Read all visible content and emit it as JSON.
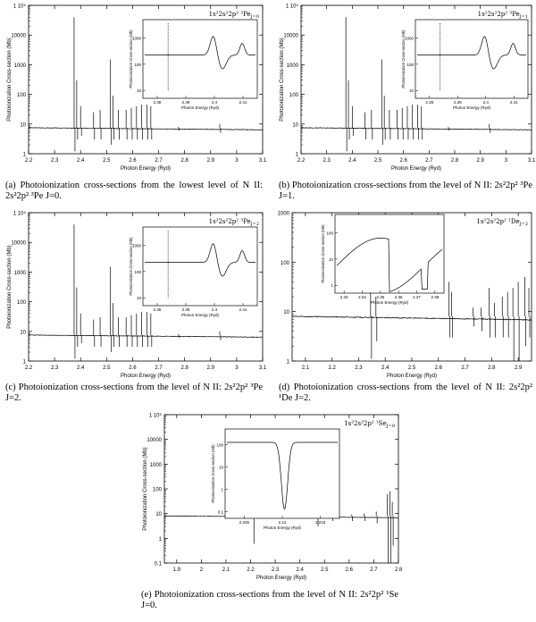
{
  "chart_data": [
    {
      "type": "line",
      "ylabel": "Photoionization Cross-section (Mb)",
      "xlabel": "Photon Energy (Ryd)",
      "state": "1s²2s²2p² ³Pe",
      "state_j": "J=0",
      "yscale": "log",
      "ylim": [
        1,
        100000
      ],
      "yticks": [
        "1",
        "10",
        "100",
        "1000",
        "10000",
        "1 10⁵"
      ],
      "xlim": [
        2.2,
        3.1
      ],
      "xticks": [
        "2.2",
        "2.3",
        "2.4",
        "2.5",
        "2.6",
        "2.7",
        "2.8",
        "2.9",
        "3",
        "3.1"
      ],
      "baseline": 7.5,
      "resonances": [
        {
          "x": 2.375,
          "peak": 40000,
          "dip": 1.2
        },
        {
          "x": 2.385,
          "peak": 300,
          "dip": 3
        },
        {
          "x": 2.4,
          "peak": 40,
          "dip": 4
        },
        {
          "x": 2.45,
          "peak": 25,
          "dip": 3
        },
        {
          "x": 2.475,
          "peak": 30,
          "dip": 3
        },
        {
          "x": 2.515,
          "peak": 1500,
          "dip": 2
        },
        {
          "x": 2.525,
          "peak": 90,
          "dip": 3
        },
        {
          "x": 2.545,
          "peak": 30,
          "dip": 3
        },
        {
          "x": 2.575,
          "peak": 30,
          "dip": 3
        },
        {
          "x": 2.595,
          "peak": 35,
          "dip": 3
        },
        {
          "x": 2.615,
          "peak": 40,
          "dip": 3
        },
        {
          "x": 2.635,
          "peak": 45,
          "dip": 3
        },
        {
          "x": 2.655,
          "peak": 45,
          "dip": 3
        },
        {
          "x": 2.67,
          "peak": 40,
          "dip": 3
        },
        {
          "x": 2.775,
          "peak": 8,
          "dip": 6
        },
        {
          "x": 2.935,
          "peak": 10,
          "dip": 5
        }
      ],
      "inset": {
        "ylabel": "Photoionization Cross-section (Mb)",
        "xlabel": "Photon Energy (Ryd)",
        "yticks": [
          "10",
          "100",
          "1000"
        ],
        "xticks": [
          "2.38",
          "2.39",
          "2.4",
          "2.41"
        ]
      },
      "caption": "(a) Photoionization cross-sections from the lowest level of N II: 2s²2p² ³Pe J=0."
    },
    {
      "type": "line",
      "ylabel": "Photoionization Cross-section (Mb)",
      "xlabel": "Photon Energy (Ryd)",
      "state": "1s²2s²2p² ³Pe",
      "state_j": "J=1",
      "yscale": "log",
      "ylim": [
        1,
        100000
      ],
      "yticks": [
        "1",
        "10",
        "100",
        "1000",
        "10000",
        "1 10⁵"
      ],
      "xlim": [
        2.2,
        3.1
      ],
      "xticks": [
        "2.2",
        "2.3",
        "2.4",
        "2.5",
        "2.6",
        "2.7",
        "2.8",
        "2.9",
        "3",
        "3.1"
      ],
      "baseline": 7.5,
      "resonances": [
        {
          "x": 2.375,
          "peak": 40000,
          "dip": 1.2
        },
        {
          "x": 2.385,
          "peak": 300,
          "dip": 3
        },
        {
          "x": 2.4,
          "peak": 40,
          "dip": 4
        },
        {
          "x": 2.45,
          "peak": 25,
          "dip": 3
        },
        {
          "x": 2.475,
          "peak": 30,
          "dip": 3
        },
        {
          "x": 2.515,
          "peak": 1500,
          "dip": 2
        },
        {
          "x": 2.525,
          "peak": 90,
          "dip": 3
        },
        {
          "x": 2.545,
          "peak": 30,
          "dip": 3
        },
        {
          "x": 2.575,
          "peak": 30,
          "dip": 3
        },
        {
          "x": 2.595,
          "peak": 35,
          "dip": 3
        },
        {
          "x": 2.615,
          "peak": 40,
          "dip": 3
        },
        {
          "x": 2.635,
          "peak": 45,
          "dip": 3
        },
        {
          "x": 2.655,
          "peak": 45,
          "dip": 3
        },
        {
          "x": 2.67,
          "peak": 40,
          "dip": 3
        },
        {
          "x": 2.775,
          "peak": 8,
          "dip": 6
        },
        {
          "x": 2.935,
          "peak": 10,
          "dip": 5
        }
      ],
      "inset": {
        "ylabel": "Photoionization Cross-section (Mb)",
        "xlabel": "Photon Energy (Ryd)",
        "yticks": [
          "10",
          "100",
          "1000"
        ],
        "xticks": [
          "2.38",
          "2.39",
          "2.4",
          "2.41"
        ]
      },
      "caption": "(b) Photoionization cross-sections from the level of N II: 2s²2p² ³Pe J=1."
    },
    {
      "type": "line",
      "ylabel": "Photoionization Cross-section (Mb)",
      "xlabel": "Photon Energy (Ryd)",
      "state": "1s²2s²2p² ³Pe",
      "state_j": "J=2",
      "yscale": "log",
      "ylim": [
        1,
        100000
      ],
      "yticks": [
        "1",
        "10",
        "100",
        "1000",
        "10000",
        "1 10⁵"
      ],
      "xlim": [
        2.2,
        3.1
      ],
      "xticks": [
        "2.2",
        "2.3",
        "2.4",
        "2.5",
        "2.6",
        "2.7",
        "2.8",
        "2.9",
        "3",
        "3.1"
      ],
      "baseline": 7.5,
      "resonances": [
        {
          "x": 2.375,
          "peak": 40000,
          "dip": 1.2
        },
        {
          "x": 2.385,
          "peak": 300,
          "dip": 3
        },
        {
          "x": 2.4,
          "peak": 40,
          "dip": 4
        },
        {
          "x": 2.45,
          "peak": 25,
          "dip": 3
        },
        {
          "x": 2.475,
          "peak": 30,
          "dip": 3
        },
        {
          "x": 2.515,
          "peak": 1500,
          "dip": 2
        },
        {
          "x": 2.525,
          "peak": 90,
          "dip": 3
        },
        {
          "x": 2.545,
          "peak": 30,
          "dip": 3
        },
        {
          "x": 2.575,
          "peak": 30,
          "dip": 3
        },
        {
          "x": 2.595,
          "peak": 35,
          "dip": 3
        },
        {
          "x": 2.615,
          "peak": 40,
          "dip": 3
        },
        {
          "x": 2.635,
          "peak": 45,
          "dip": 3
        },
        {
          "x": 2.655,
          "peak": 45,
          "dip": 3
        },
        {
          "x": 2.67,
          "peak": 40,
          "dip": 3
        },
        {
          "x": 2.775,
          "peak": 8,
          "dip": 6
        },
        {
          "x": 2.935,
          "peak": 10,
          "dip": 5
        }
      ],
      "inset": {
        "ylabel": "Photoionization Cross-section (Mb)",
        "xlabel": "Photon Energy (Ryd)",
        "yticks": [
          "10",
          "100",
          "1000"
        ],
        "xticks": [
          "2.38",
          "2.39",
          "2.4",
          "2.41"
        ]
      },
      "caption": "(c) Photoionization cross-sections from the level of N II: 2s²2p² ³Pe J=2."
    },
    {
      "type": "line",
      "ylabel": "",
      "xlabel": "Photon Energy (Ryd)",
      "state": "1s²2s²2p² ¹De",
      "state_j": "J=2",
      "yscale": "log",
      "ylim": [
        1,
        1000
      ],
      "yticks": [
        "1",
        "10",
        "100",
        "1000"
      ],
      "xlim": [
        2.05,
        2.95
      ],
      "xticks": [
        "2.1",
        "2.2",
        "2.3",
        "2.4",
        "2.5",
        "2.6",
        "2.7",
        "2.8",
        "2.9"
      ],
      "baseline": 8,
      "resonances": [
        {
          "x": 2.345,
          "peak": 90,
          "dip": 1.1
        },
        {
          "x": 2.365,
          "peak": 20,
          "dip": 2.5
        },
        {
          "x": 2.64,
          "peak": 40,
          "dip": 3
        },
        {
          "x": 2.65,
          "peak": 25,
          "dip": 3
        },
        {
          "x": 2.73,
          "peak": 12,
          "dip": 5
        },
        {
          "x": 2.76,
          "peak": 12,
          "dip": 4
        },
        {
          "x": 2.79,
          "peak": 30,
          "dip": 3
        },
        {
          "x": 2.81,
          "peak": 15,
          "dip": 3
        },
        {
          "x": 2.84,
          "peak": 20,
          "dip": 3
        },
        {
          "x": 2.86,
          "peak": 25,
          "dip": 3
        },
        {
          "x": 2.88,
          "peak": 30,
          "dip": 1
        },
        {
          "x": 2.9,
          "peak": 40,
          "dip": 1
        },
        {
          "x": 2.925,
          "peak": 50,
          "dip": 2
        },
        {
          "x": 2.94,
          "peak": 30,
          "dip": 3
        }
      ],
      "inset": {
        "ylabel": "Photoionization Cross-section (Mb)",
        "xlabel": "Photon Energy (Ryd)",
        "yticks": [
          "1",
          "10",
          "100"
        ],
        "xticks": [
          "2.33",
          "2.34",
          "2.35",
          "2.36",
          "2.37",
          "2.38"
        ]
      },
      "caption": "(d) Photoionization cross-sections from the level of N II: 2s²2p² ¹De J=2."
    },
    {
      "type": "line",
      "ylabel": "Photoionization Cross-section (Mb)",
      "xlabel": "Photon Energy (Ryd)",
      "state": "1s²2s²2p² ¹Se",
      "state_j": "J=0",
      "yscale": "log",
      "ylim": [
        0.1,
        100000
      ],
      "yticks": [
        "0.1",
        "1",
        "10",
        "100",
        "1000",
        "10000",
        "1 10⁵"
      ],
      "xlim": [
        1.85,
        2.8
      ],
      "xticks": [
        "1.9",
        "2",
        "2.1",
        "2.2",
        "2.3",
        "2.4",
        "2.5",
        "2.6",
        "2.7",
        "2.8"
      ],
      "baseline": 8,
      "resonances": [
        {
          "x": 2.21,
          "peak": 12,
          "dip": 0.6
        },
        {
          "x": 2.47,
          "peak": 40,
          "dip": 3
        },
        {
          "x": 2.53,
          "peak": 9,
          "dip": 5
        },
        {
          "x": 2.61,
          "peak": 9,
          "dip": 5
        },
        {
          "x": 2.66,
          "peak": 10,
          "dip": 5
        },
        {
          "x": 2.71,
          "peak": 12,
          "dip": 4
        },
        {
          "x": 2.755,
          "peak": 60,
          "dip": 0.1
        },
        {
          "x": 2.765,
          "peak": 80,
          "dip": 0.1
        },
        {
          "x": 2.775,
          "peak": 30,
          "dip": 0.5
        }
      ],
      "inset": {
        "ylabel": "Photoionization Cross-section (Mb)",
        "xlabel": "Photon Energy (Ryd)",
        "yticks": [
          "0.1",
          "1",
          "10",
          "100"
        ],
        "xticks": [
          "2.205",
          "2.21",
          "2.215"
        ]
      },
      "caption": "(e) Photoionization cross-sections from the level of N II: 2s²2p² ¹Se J=0."
    }
  ]
}
